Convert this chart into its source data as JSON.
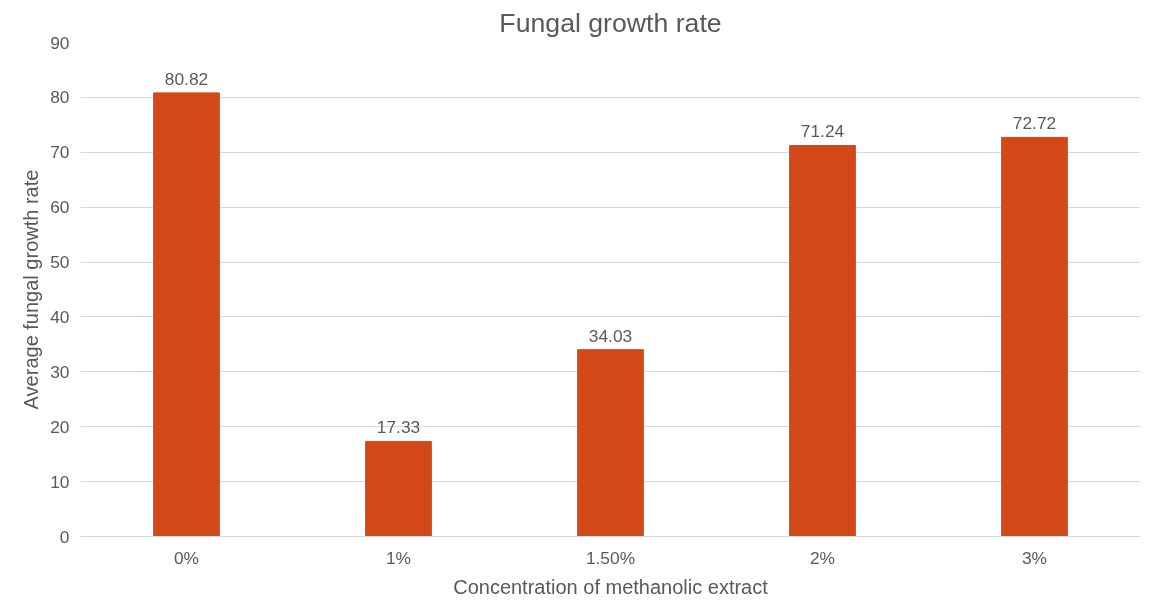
{
  "chart_data": {
    "type": "bar",
    "title": "Fungal growth rate",
    "xlabel": "Concentration of methanolic extract",
    "ylabel": "Average fungal growth rate",
    "categories": [
      "0%",
      "1%",
      "1.50%",
      "2%",
      "3%"
    ],
    "values": [
      80.82,
      17.33,
      34.03,
      71.24,
      72.72
    ],
    "color": "#d34817",
    "ylim": [
      0,
      90
    ],
    "yticks": [
      0,
      10,
      20,
      30,
      40,
      50,
      60,
      70,
      80,
      90
    ],
    "grid": "y",
    "data_labels": true
  }
}
